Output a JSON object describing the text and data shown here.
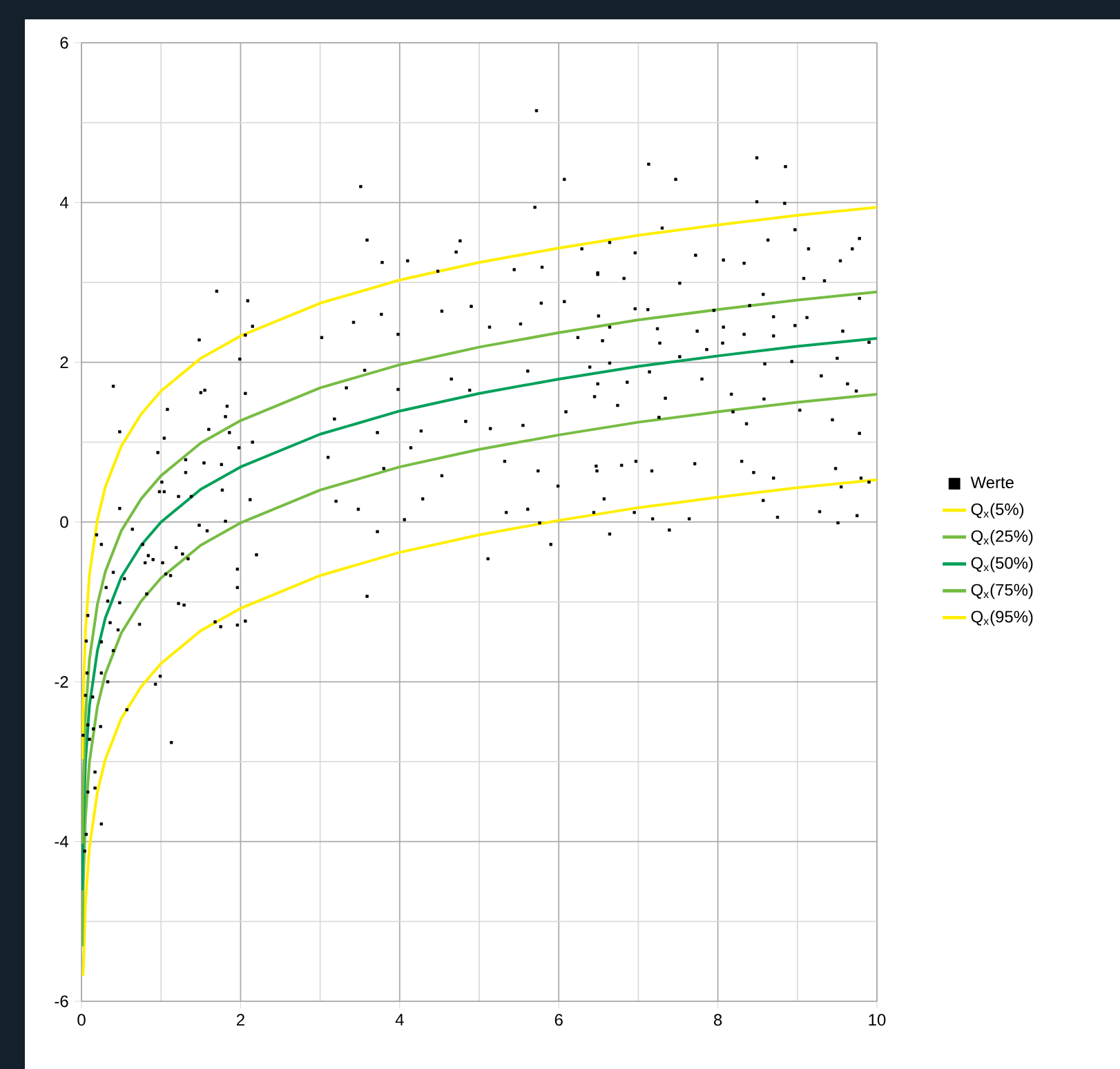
{
  "chart_data": {
    "type": "scatter",
    "xlim": [
      0,
      10
    ],
    "ylim": [
      -6,
      6
    ],
    "xticks": [
      0,
      2,
      4,
      6,
      8,
      10
    ],
    "yticks": [
      -6,
      -4,
      -2,
      0,
      2,
      4,
      6
    ],
    "grid": true,
    "legend": "right",
    "series": [
      {
        "name": "Werte",
        "marker": "square",
        "color": "#000000",
        "x": [
          0.4,
          0.48,
          0.48,
          0.19,
          0.25,
          0.64,
          0.4,
          0.54,
          0.31,
          0.33,
          0.48,
          0.08,
          0.36,
          0.46,
          0.06,
          0.25,
          0.4,
          0.07,
          0.25,
          0.33,
          0.05,
          0.14,
          0.08,
          0.24,
          0.15,
          0.02,
          0.1,
          0.57,
          0.17,
          0.17,
          0.08,
          0.25,
          0.06,
          0.04,
          1.13,
          0.93,
          0.99,
          0.73,
          0.82,
          0.77,
          0.8,
          0.84,
          0.9,
          0.96,
          1.04,
          1.08,
          0.98,
          1.01,
          1.04,
          1.02,
          1.06,
          1.12,
          1.19,
          1.31,
          1.31,
          1.22,
          1.27,
          1.34,
          1.22,
          1.29,
          1.38,
          1.48,
          1.5,
          1.55,
          1.6,
          1.54,
          1.48,
          1.58,
          1.68,
          1.75,
          1.7,
          1.83,
          1.81,
          1.86,
          1.76,
          1.77,
          1.81,
          1.96,
          1.96,
          1.96,
          2.06,
          2.09,
          2.06,
          1.99,
          2.06,
          1.98,
          2.12,
          2.15,
          2.2,
          2.15,
          3.51,
          3.59,
          3.78,
          4.1,
          4.71,
          4.76,
          4.48,
          5.7,
          6.07,
          5.44,
          5.79,
          6.29,
          6.49,
          3.02,
          3.42,
          3.77,
          3.98,
          4.53,
          4.9,
          5.13,
          5.52,
          5.78,
          6.07,
          6.24,
          3.56,
          3.33,
          3.98,
          4.65,
          4.88,
          5.61,
          6.39,
          3.18,
          3.72,
          4.27,
          4.83,
          5.14,
          5.55,
          6.09,
          6.45,
          3.1,
          3.8,
          4.14,
          4.53,
          5.32,
          5.74,
          5.99,
          6.47,
          3.2,
          3.48,
          4.29,
          4.06,
          5.34,
          5.61,
          3.72,
          5.11,
          5.9,
          3.59,
          5.76,
          6.44,
          5.72,
          7.13,
          7.47,
          8.49,
          8.85,
          8.49,
          8.84,
          7.3,
          8.97,
          6.64,
          6.96,
          7.72,
          8.07,
          8.33,
          8.63,
          9.14,
          9.54,
          9.69,
          9.78,
          6.49,
          6.82,
          7.52,
          8.57,
          9.08,
          9.34,
          6.5,
          6.96,
          7.12,
          7.95,
          8.4,
          8.7,
          9.12,
          9.78,
          6.64,
          7.24,
          7.74,
          8.07,
          8.97,
          6.55,
          7.27,
          7.86,
          8.33,
          8.7,
          9.57,
          9.9,
          6.64,
          7.14,
          7.52,
          8.06,
          8.59,
          8.93,
          9.5,
          6.49,
          6.86,
          7.34,
          7.8,
          8.17,
          8.58,
          9.3,
          9.63,
          9.74,
          6.74,
          7.26,
          8.19,
          8.36,
          9.03,
          9.44,
          9.78,
          6.48,
          6.79,
          6.97,
          7.17,
          7.71,
          8.3,
          8.45,
          8.7,
          9.48,
          6.57,
          6.95,
          7.64,
          8.57,
          8.75,
          9.28,
          9.55,
          9.51,
          6.64,
          7.39,
          7.18,
          9.8,
          9.75,
          9.9
        ],
        "values": [
          1.7,
          1.13,
          0.17,
          -0.16,
          -0.28,
          -0.09,
          -0.63,
          -0.71,
          -0.82,
          -0.99,
          -1.01,
          -1.17,
          -1.26,
          -1.35,
          -1.49,
          -1.5,
          -1.61,
          -1.89,
          -1.89,
          -2.0,
          -2.17,
          -2.19,
          -2.54,
          -2.56,
          -2.59,
          -2.67,
          -2.72,
          -2.35,
          -3.13,
          -3.33,
          -3.38,
          -3.78,
          -3.91,
          -4.12,
          -2.76,
          -2.03,
          -1.93,
          -1.28,
          -0.9,
          -0.28,
          -0.51,
          -0.42,
          -0.47,
          0.87,
          1.05,
          1.41,
          0.38,
          0.5,
          0.38,
          -0.51,
          -0.65,
          -0.67,
          -0.32,
          0.78,
          0.62,
          0.32,
          -0.4,
          -0.46,
          -1.02,
          -1.04,
          0.32,
          2.28,
          1.62,
          1.65,
          1.16,
          0.74,
          -0.04,
          -0.11,
          -1.25,
          -1.31,
          2.89,
          1.45,
          1.32,
          1.12,
          0.72,
          0.4,
          0.01,
          -0.59,
          -0.82,
          -1.29,
          -1.24,
          2.77,
          2.34,
          2.04,
          1.61,
          0.93,
          0.28,
          1.0,
          -0.41,
          2.45,
          4.2,
          3.53,
          3.25,
          3.27,
          3.38,
          3.52,
          3.14,
          3.94,
          4.29,
          3.16,
          3.19,
          3.42,
          3.1,
          2.31,
          2.5,
          2.6,
          2.35,
          2.64,
          2.7,
          2.44,
          2.48,
          2.74,
          2.76,
          2.31,
          1.9,
          1.68,
          1.66,
          1.79,
          1.65,
          1.89,
          1.94,
          1.29,
          1.12,
          1.14,
          1.26,
          1.17,
          1.21,
          1.38,
          1.57,
          0.81,
          0.67,
          0.93,
          0.58,
          0.76,
          0.64,
          0.45,
          0.7,
          0.26,
          0.16,
          0.29,
          0.03,
          0.12,
          0.16,
          -0.12,
          -0.46,
          -0.28,
          -0.93,
          -0.01,
          0.12,
          5.15,
          4.48,
          4.29,
          4.56,
          4.45,
          4.01,
          3.99,
          3.68,
          3.66,
          3.5,
          3.37,
          3.34,
          3.28,
          3.24,
          3.53,
          3.42,
          3.27,
          3.42,
          3.55,
          3.12,
          3.05,
          2.99,
          2.85,
          3.05,
          3.02,
          2.58,
          2.67,
          2.66,
          2.65,
          2.71,
          2.57,
          2.56,
          2.8,
          2.44,
          2.42,
          2.39,
          2.44,
          2.46,
          2.27,
          2.24,
          2.16,
          2.35,
          2.33,
          2.39,
          2.25,
          1.99,
          1.88,
          2.07,
          2.24,
          1.98,
          2.01,
          2.05,
          1.73,
          1.75,
          1.55,
          1.79,
          1.6,
          1.54,
          1.83,
          1.73,
          1.64,
          1.46,
          1.31,
          1.38,
          1.23,
          1.4,
          1.28,
          1.11,
          0.64,
          0.71,
          0.76,
          0.64,
          0.73,
          0.76,
          0.62,
          0.55,
          0.67,
          0.29,
          0.12,
          0.04,
          0.27,
          0.06,
          0.13,
          0.44,
          -0.01,
          -0.15,
          -0.1,
          0.04,
          0.55,
          0.08,
          0.5
        ]
      },
      {
        "name": "Q$_{x}$(5%)",
        "type": "line",
        "color": "#ffee00",
        "x": [
          0.02,
          0.05,
          0.1,
          0.2,
          0.3,
          0.5,
          0.75,
          1,
          1.5,
          2,
          3,
          4,
          5,
          6,
          7,
          8,
          9,
          10
        ],
        "values": [
          -5.68,
          -4.77,
          -4.07,
          -3.38,
          -2.97,
          -2.46,
          -2.06,
          -1.77,
          -1.36,
          -1.08,
          -0.67,
          -0.38,
          -0.16,
          0.02,
          0.18,
          0.31,
          0.43,
          0.53
        ]
      },
      {
        "name": "Q$_{x}$(25%)",
        "type": "line",
        "color": "#77bc43",
        "x": [
          0.01,
          0.02,
          0.05,
          0.1,
          0.2,
          0.3,
          0.5,
          0.75,
          1,
          1.5,
          2,
          3,
          4,
          5,
          6,
          7,
          8,
          9,
          10
        ],
        "values": [
          -5.31,
          -4.61,
          -3.7,
          -3.0,
          -2.31,
          -1.9,
          -1.39,
          -0.99,
          -0.7,
          -0.29,
          -0.01,
          0.4,
          0.69,
          0.91,
          1.09,
          1.25,
          1.38,
          1.5,
          1.6
        ]
      },
      {
        "name": "Q$_{x}$(50%)",
        "type": "line",
        "color": "#00a05a",
        "x": [
          0.01,
          0.02,
          0.05,
          0.1,
          0.2,
          0.3,
          0.5,
          0.75,
          1,
          1.5,
          2,
          3,
          4,
          5,
          6,
          7,
          8,
          9,
          10
        ],
        "values": [
          -4.61,
          -3.91,
          -3.0,
          -2.3,
          -1.61,
          -1.2,
          -0.69,
          -0.29,
          0,
          0.41,
          0.69,
          1.1,
          1.39,
          1.61,
          1.79,
          1.95,
          2.08,
          2.2,
          2.3
        ]
      },
      {
        "name": "Q$_{x}$(75%)",
        "type": "line",
        "color": "#77bc43",
        "x": [
          0.01,
          0.02,
          0.05,
          0.1,
          0.2,
          0.3,
          0.5,
          0.75,
          1,
          1.5,
          2,
          3,
          4,
          5,
          6,
          7,
          8,
          9,
          10
        ],
        "values": [
          -4.03,
          -3.33,
          -2.42,
          -1.72,
          -1.03,
          -0.62,
          -0.11,
          0.29,
          0.58,
          0.99,
          1.27,
          1.68,
          1.97,
          2.19,
          2.37,
          2.53,
          2.66,
          2.78,
          2.88
        ]
      },
      {
        "name": "Q$_{x}$(95%)",
        "type": "line",
        "color": "#ffee00",
        "x": [
          0.01,
          0.02,
          0.05,
          0.1,
          0.2,
          0.3,
          0.5,
          0.75,
          1,
          1.5,
          2,
          3,
          4,
          5,
          6,
          7,
          8,
          9,
          10
        ],
        "values": [
          -2.97,
          -2.27,
          -1.36,
          -0.66,
          0.03,
          0.44,
          0.95,
          1.35,
          1.64,
          2.05,
          2.33,
          2.74,
          3.03,
          3.25,
          3.43,
          3.59,
          3.72,
          3.84,
          3.94
        ]
      }
    ]
  }
}
